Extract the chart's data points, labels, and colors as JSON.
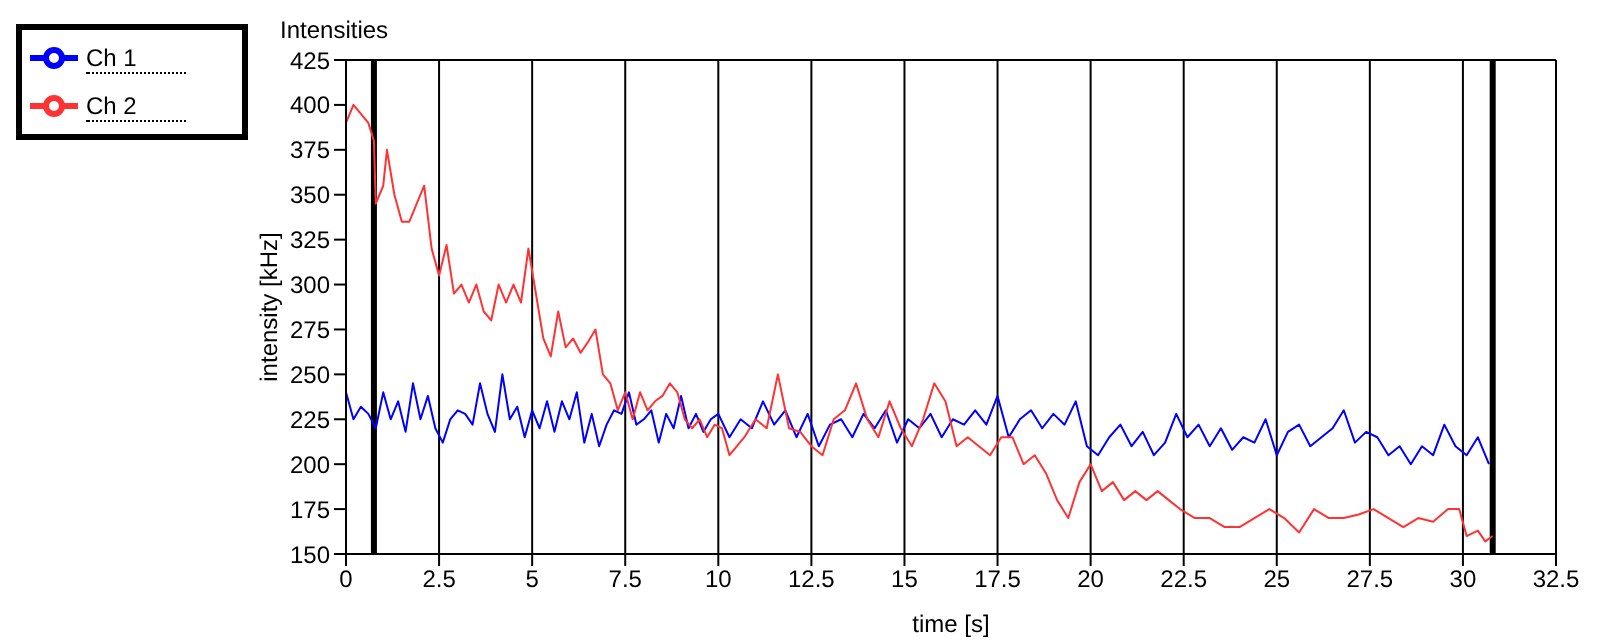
{
  "chart_data": {
    "type": "line",
    "title": "Intensities",
    "xlabel": "time [s]",
    "ylabel": "intensity [kHz]",
    "xlim": [
      0,
      32.5
    ],
    "xticks": [
      0,
      2.5,
      5,
      7.5,
      10,
      12.5,
      15,
      17.5,
      20,
      22.5,
      25,
      27.5,
      30,
      32.5
    ],
    "ylim": [
      150,
      425
    ],
    "yticks": [
      150,
      175,
      200,
      225,
      250,
      275,
      300,
      325,
      350,
      375,
      400,
      425
    ],
    "grid": true,
    "legend": "top left",
    "marker": "none",
    "line_style": "solid",
    "ref_lines": [
      {
        "axis": "x",
        "value": 0.75,
        "color": "#000000"
      },
      {
        "axis": "x",
        "value": 30.8,
        "color": "#000000"
      }
    ],
    "series": [
      {
        "name": "Ch 1",
        "color": "#0000ff",
        "x": [
          0,
          0.2,
          0.4,
          0.6,
          0.8,
          1.0,
          1.2,
          1.4,
          1.6,
          1.8,
          2.0,
          2.2,
          2.4,
          2.6,
          2.8,
          3.0,
          3.2,
          3.4,
          3.6,
          3.8,
          4.0,
          4.2,
          4.4,
          4.6,
          4.8,
          5.0,
          5.2,
          5.4,
          5.6,
          5.8,
          6.0,
          6.2,
          6.4,
          6.6,
          6.8,
          7.0,
          7.2,
          7.4,
          7.6,
          7.8,
          8.0,
          8.2,
          8.4,
          8.6,
          8.8,
          9.0,
          9.2,
          9.4,
          9.6,
          9.8,
          10.0,
          10.3,
          10.6,
          10.9,
          11.2,
          11.5,
          11.8,
          12.1,
          12.4,
          12.7,
          13.0,
          13.3,
          13.6,
          13.9,
          14.2,
          14.5,
          14.8,
          15.1,
          15.4,
          15.7,
          16.0,
          16.3,
          16.6,
          16.9,
          17.2,
          17.5,
          17.8,
          18.1,
          18.4,
          18.7,
          19.0,
          19.3,
          19.6,
          19.9,
          20.2,
          20.5,
          20.8,
          21.1,
          21.4,
          21.7,
          22.0,
          22.3,
          22.6,
          22.9,
          23.2,
          23.5,
          23.8,
          24.1,
          24.4,
          24.7,
          25.0,
          25.3,
          25.6,
          25.9,
          26.2,
          26.5,
          26.8,
          27.1,
          27.4,
          27.7,
          28.0,
          28.3,
          28.6,
          28.9,
          29.2,
          29.5,
          29.8,
          30.1,
          30.4,
          30.7
        ],
        "values": [
          240,
          225,
          232,
          228,
          220,
          240,
          225,
          235,
          218,
          245,
          225,
          238,
          220,
          212,
          225,
          230,
          228,
          222,
          245,
          228,
          218,
          250,
          225,
          232,
          215,
          230,
          220,
          235,
          218,
          235,
          225,
          240,
          212,
          228,
          210,
          222,
          230,
          228,
          240,
          222,
          225,
          230,
          212,
          228,
          220,
          238,
          220,
          228,
          218,
          225,
          228,
          215,
          225,
          220,
          235,
          222,
          230,
          215,
          228,
          210,
          222,
          225,
          215,
          228,
          220,
          230,
          212,
          225,
          220,
          228,
          215,
          225,
          222,
          230,
          222,
          238,
          215,
          225,
          230,
          220,
          228,
          222,
          235,
          210,
          205,
          215,
          222,
          210,
          218,
          205,
          212,
          228,
          215,
          222,
          210,
          220,
          208,
          215,
          212,
          225,
          205,
          218,
          222,
          210,
          215,
          220,
          230,
          212,
          218,
          215,
          205,
          210,
          200,
          210,
          205,
          222,
          210,
          205,
          215,
          200
        ]
      },
      {
        "name": "Ch 2",
        "color": "#ff3333",
        "x": [
          0,
          0.2,
          0.4,
          0.6,
          0.75,
          0.8,
          1.0,
          1.1,
          1.3,
          1.5,
          1.7,
          1.9,
          2.0,
          2.1,
          2.3,
          2.5,
          2.7,
          2.9,
          3.1,
          3.3,
          3.5,
          3.7,
          3.9,
          4.1,
          4.3,
          4.5,
          4.7,
          4.9,
          5.1,
          5.3,
          5.5,
          5.7,
          5.9,
          6.1,
          6.3,
          6.5,
          6.7,
          6.9,
          7.1,
          7.3,
          7.5,
          7.7,
          7.9,
          8.1,
          8.3,
          8.5,
          8.7,
          8.9,
          9.1,
          9.3,
          9.5,
          9.7,
          9.9,
          10.1,
          10.3,
          10.5,
          10.7,
          11.0,
          11.3,
          11.6,
          11.9,
          12.2,
          12.5,
          12.8,
          13.1,
          13.4,
          13.7,
          14.0,
          14.3,
          14.6,
          14.9,
          15.2,
          15.5,
          15.8,
          16.1,
          16.4,
          16.7,
          17.0,
          17.3,
          17.6,
          17.9,
          18.2,
          18.5,
          18.8,
          19.1,
          19.4,
          19.7,
          20.0,
          20.3,
          20.6,
          20.9,
          21.2,
          21.5,
          21.8,
          22.1,
          22.4,
          22.8,
          23.2,
          23.6,
          24.0,
          24.4,
          24.8,
          25.2,
          25.6,
          26.0,
          26.4,
          26.8,
          27.2,
          27.6,
          28.0,
          28.4,
          28.8,
          29.2,
          29.6,
          29.9,
          30.1,
          30.4,
          30.6,
          30.8
        ],
        "values": [
          390,
          400,
          395,
          390,
          380,
          345,
          355,
          375,
          350,
          335,
          335,
          345,
          350,
          355,
          320,
          305,
          322,
          295,
          300,
          290,
          300,
          285,
          280,
          300,
          290,
          300,
          290,
          320,
          295,
          270,
          260,
          285,
          265,
          270,
          262,
          268,
          275,
          250,
          245,
          230,
          240,
          225,
          240,
          230,
          235,
          238,
          245,
          240,
          225,
          220,
          225,
          215,
          222,
          220,
          205,
          210,
          215,
          225,
          220,
          250,
          220,
          218,
          210,
          205,
          225,
          230,
          245,
          225,
          215,
          235,
          220,
          210,
          225,
          245,
          235,
          210,
          215,
          210,
          205,
          215,
          215,
          200,
          205,
          195,
          180,
          170,
          190,
          200,
          185,
          190,
          180,
          185,
          180,
          185,
          180,
          175,
          170,
          170,
          165,
          165,
          170,
          175,
          170,
          162,
          175,
          170,
          170,
          172,
          175,
          170,
          165,
          170,
          168,
          175,
          175,
          160,
          163,
          157,
          160
        ]
      }
    ]
  }
}
